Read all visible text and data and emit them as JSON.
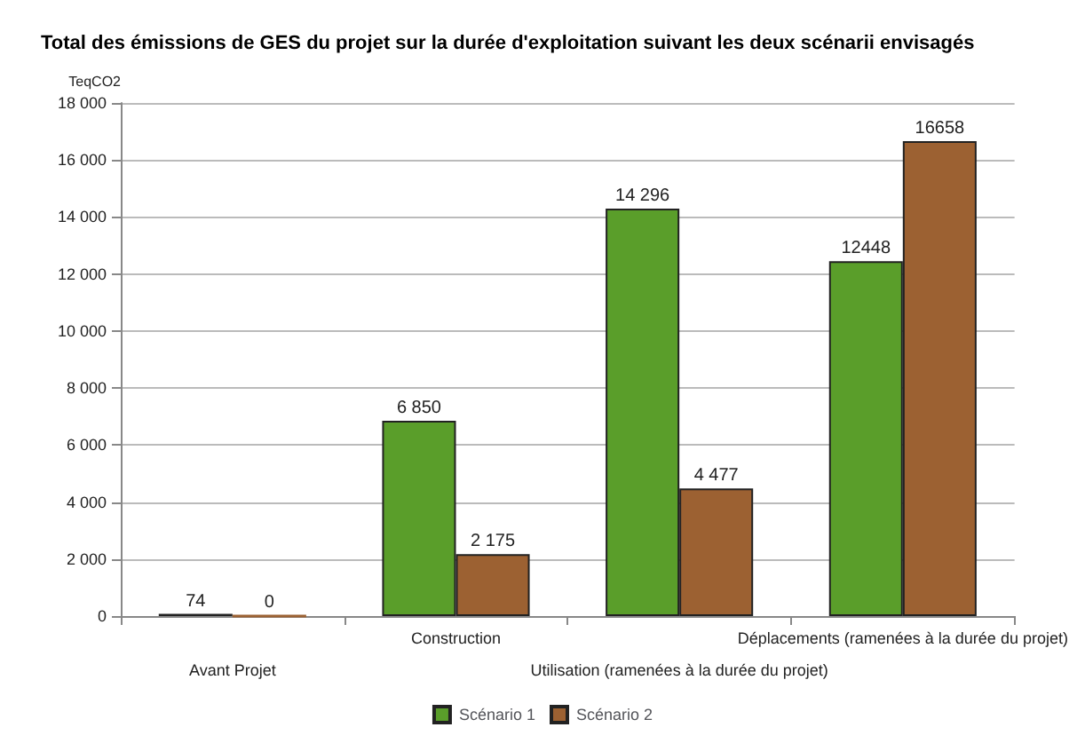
{
  "chart_data": {
    "type": "bar",
    "title": "Total des émissions de GES du projet sur la durée d'exploitation suivant les deux scénarii envisagés",
    "ylabel": "TeqCO2",
    "categories": [
      "Avant Projet",
      "Construction",
      "Utilisation (ramenées à la durée du projet)",
      "Déplacements (ramenées à la durée du projet)"
    ],
    "series": [
      {
        "name": "Scénario 1",
        "color": "#5a9e2a",
        "values": [
          74,
          6850,
          14296,
          12448
        ],
        "value_labels": [
          "74",
          "6 850",
          "14 296",
          "12448"
        ]
      },
      {
        "name": "Scénario 2",
        "color": "#9c6132",
        "values": [
          0,
          2175,
          4477,
          16658
        ],
        "value_labels": [
          "0",
          "2 175",
          "4 477",
          "16658"
        ]
      }
    ],
    "ylim": [
      0,
      18000
    ],
    "yticks": [
      0,
      {
        "value": 2000,
        "label": "2 000"
      },
      {
        "value": 4000,
        "label": "4 000"
      },
      {
        "value": 6000,
        "label": "6 000"
      },
      {
        "value": 8000,
        "label": "8 000"
      },
      {
        "value": 10000,
        "label": "10 000"
      },
      {
        "value": 12000,
        "label": "12 000"
      },
      {
        "value": 14000,
        "label": "14 000"
      },
      {
        "value": 16000,
        "label": "16 000"
      },
      {
        "value": 18000,
        "label": "18 000"
      }
    ],
    "grid": "y",
    "legend": "bottom"
  }
}
